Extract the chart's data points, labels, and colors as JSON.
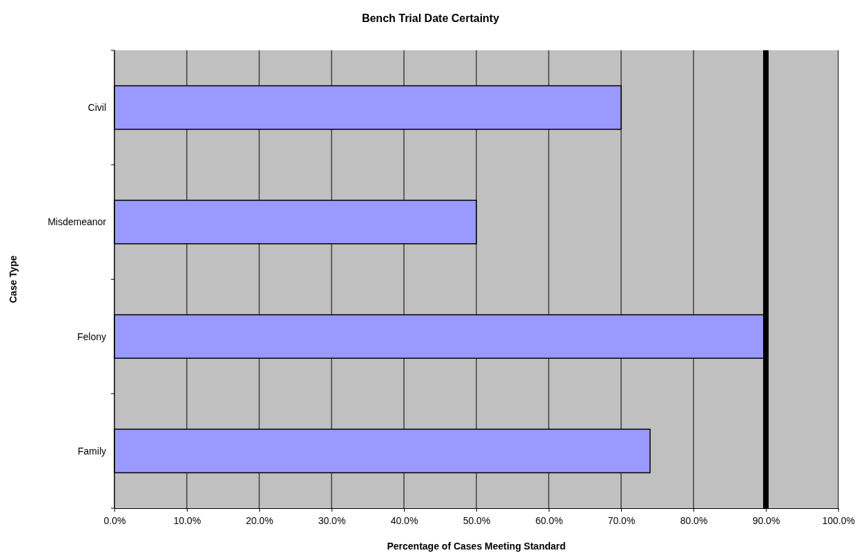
{
  "chart_data": {
    "type": "bar",
    "orientation": "horizontal",
    "title": "Bench Trial Date Certainty",
    "xlabel": "Percentage of Cases Meeting Standard",
    "ylabel": "Case Type",
    "categories": [
      "Civil",
      "Misdemeanor",
      "Felony",
      "Family"
    ],
    "values": [
      70,
      50,
      89.7,
      74
    ],
    "color": "#9999ff",
    "xlim": [
      0,
      100
    ],
    "xticks": [
      {
        "value": 0,
        "label": "0.0%"
      },
      {
        "value": 10,
        "label": "10.0%"
      },
      {
        "value": 20,
        "label": "20.0%"
      },
      {
        "value": 30,
        "label": "30.0%"
      },
      {
        "value": 40,
        "label": "40.0%"
      },
      {
        "value": 50,
        "label": "50.0%"
      },
      {
        "value": 60,
        "label": "60.0%"
      },
      {
        "value": 70,
        "label": "70.0%"
      },
      {
        "value": 80,
        "label": "80.0%"
      },
      {
        "value": 90,
        "label": "90.0%"
      },
      {
        "value": 100,
        "label": "100.0%"
      }
    ],
    "grid": "x",
    "ref_lines": [
      {
        "axis": "x",
        "value": 90,
        "color": "#000000"
      }
    ]
  }
}
